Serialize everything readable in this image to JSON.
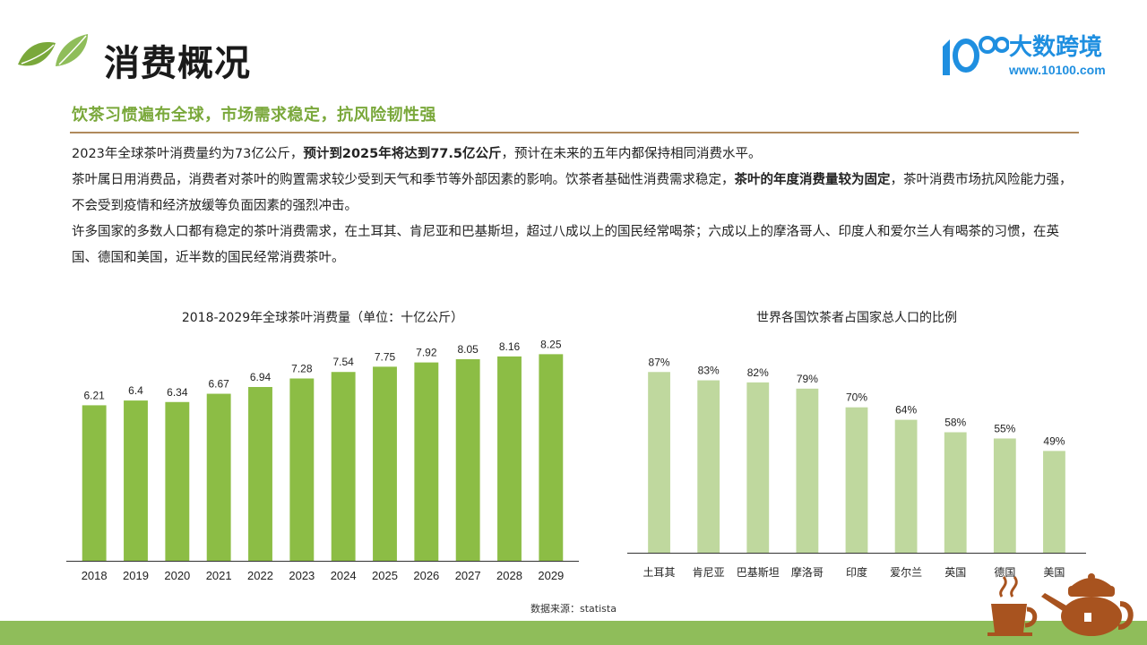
{
  "header": {
    "title": "消费概况",
    "brand_name": "大数跨境",
    "brand_url": "www.10100.com"
  },
  "subtitle": "饮茶习惯遍布全球，市场需求稳定，抗风险韧性强",
  "paragraphs": [
    {
      "segments": [
        {
          "text": "2023年全球茶叶消费量约为73亿公斤，",
          "bold": false
        },
        {
          "text": "预计到2025年将达到77.5亿公斤",
          "bold": true
        },
        {
          "text": "，预计在未来的五年内都保持相同消费水平。",
          "bold": false
        }
      ]
    },
    {
      "segments": [
        {
          "text": "茶叶属日用消费品，消费者对茶叶的购置需求较少受到天气和季节等外部因素的影响。饮茶者基础性消费需求稳定，",
          "bold": false
        },
        {
          "text": "茶叶的年度消费量较为固定",
          "bold": true
        },
        {
          "text": "，茶叶消费市场抗风险能力强，不会受到疫情和经济放缓等负面因素的强烈冲击。",
          "bold": false
        }
      ]
    },
    {
      "segments": [
        {
          "text": "许多国家的多数人口都有稳定的茶叶消费需求，在土耳其、肯尼亚和巴基斯坦，超过八成以上的国民经常喝茶；六成以上的摩洛哥人、印度人和爱尔兰人有喝茶的习惯，在英国、德国和美国，近半数的国民经常消费茶叶。",
          "bold": false
        }
      ]
    }
  ],
  "chart_data": [
    {
      "type": "bar",
      "title": "2018-2029年全球茶叶消费量（单位：十亿公斤）",
      "categories": [
        "2018",
        "2019",
        "2020",
        "2021",
        "2022",
        "2023",
        "2024",
        "2025",
        "2026",
        "2027",
        "2028",
        "2029"
      ],
      "values": [
        6.21,
        6.4,
        6.34,
        6.67,
        6.94,
        7.28,
        7.54,
        7.75,
        7.92,
        8.05,
        8.16,
        8.25
      ],
      "labels": [
        "6.21",
        "6.4",
        "6.34",
        "6.67",
        "6.94",
        "7.28",
        "7.54",
        "7.75",
        "7.92",
        "8.05",
        "8.16",
        "8.25"
      ],
      "ylim": [
        0,
        8.8
      ],
      "color": "#8cbd45",
      "grid": false
    },
    {
      "type": "bar",
      "title": "世界各国饮茶者占国家总人口的比例",
      "categories": [
        "土耳其",
        "肯尼亚",
        "巴基斯坦",
        "摩洛哥",
        "印度",
        "爱尔兰",
        "英国",
        "德国",
        "美国"
      ],
      "values": [
        87,
        83,
        82,
        79,
        70,
        64,
        58,
        55,
        49
      ],
      "labels": [
        "87%",
        "83%",
        "82%",
        "79%",
        "70%",
        "64%",
        "58%",
        "55%",
        "49%"
      ],
      "ylim": [
        0,
        91
      ],
      "color": "#bfd89e",
      "grid": false
    }
  ],
  "source": "数据来源：statista",
  "colors": {
    "accent_green": "#7aa83b",
    "divider_brown": "#b08a5c",
    "brand_blue": "#1f8fe0",
    "band_green": "#8fbd5a",
    "teapot_brown": "#a8531f"
  },
  "icons": [
    "leaf-icon",
    "brand-logo-icon",
    "teapot-icon"
  ]
}
